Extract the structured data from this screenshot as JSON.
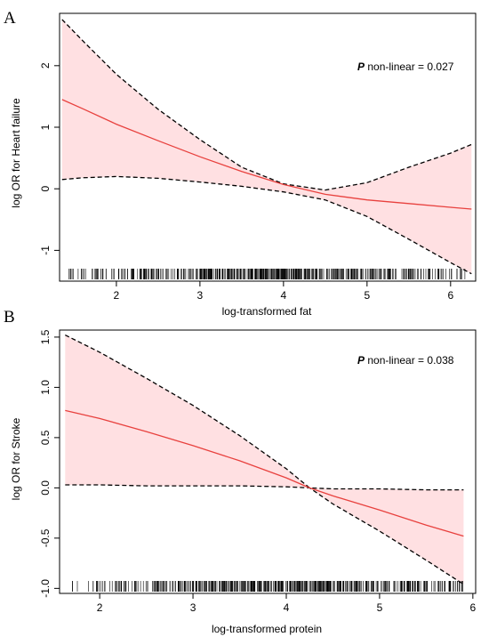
{
  "colors": {
    "ci_fill": "#ffe0e2",
    "fit_line": "#e8413e",
    "ci_line": "#000000",
    "rug": "#000000"
  },
  "chart_data": [
    {
      "type": "line",
      "panel_label": "A",
      "xlabel": "log-transformed fat",
      "ylabel": "log OR for Heart failure",
      "annotation": {
        "p": "P",
        "text": " non-linear = 0.027"
      },
      "xlim": [
        1.32,
        6.3
      ],
      "ylim": [
        -1.5,
        2.85
      ],
      "xticks": [
        2,
        3,
        4,
        5,
        6
      ],
      "yticks": [
        -1,
        0,
        1,
        2
      ],
      "x": [
        1.35,
        1.6,
        2.0,
        2.5,
        3.0,
        3.5,
        4.0,
        4.5,
        5.0,
        5.5,
        6.0,
        6.25
      ],
      "estimate": [
        1.45,
        1.3,
        1.05,
        0.78,
        0.52,
        0.28,
        0.07,
        -0.09,
        -0.18,
        -0.24,
        -0.3,
        -0.33
      ],
      "upper": [
        2.75,
        2.4,
        1.86,
        1.29,
        0.8,
        0.35,
        0.08,
        -0.02,
        0.1,
        0.35,
        0.58,
        0.72
      ],
      "lower": [
        0.15,
        0.18,
        0.2,
        0.17,
        0.11,
        0.04,
        -0.05,
        -0.18,
        -0.45,
        -0.82,
        -1.2,
        -1.38
      ],
      "rug_range": [
        1.4,
        6.2
      ]
    },
    {
      "type": "line",
      "panel_label": "B",
      "xlabel": "log-transformed protein",
      "ylabel": "log OR for Stroke",
      "annotation": {
        "p": "P",
        "text": " non-linear = 0.038"
      },
      "xlim": [
        1.57,
        6.03
      ],
      "ylim": [
        -1.05,
        1.57
      ],
      "xticks": [
        2,
        3,
        4,
        5,
        6
      ],
      "yticks": [
        -1.0,
        -0.5,
        0.0,
        0.5,
        1.0,
        1.5
      ],
      "yticklabels": [
        "-1.0",
        "-0.5",
        "0.0",
        "0.5",
        "1.0",
        "1.5"
      ],
      "x": [
        1.63,
        2.0,
        2.5,
        3.0,
        3.5,
        4.0,
        4.25,
        4.5,
        5.0,
        5.5,
        5.9
      ],
      "estimate": [
        0.77,
        0.69,
        0.56,
        0.42,
        0.27,
        0.1,
        0.0,
        -0.08,
        -0.22,
        -0.37,
        -0.48
      ],
      "upper": [
        1.52,
        1.35,
        1.09,
        0.82,
        0.52,
        0.19,
        0.0,
        -0.01,
        -0.01,
        -0.02,
        -0.02
      ],
      "lower": [
        0.03,
        0.03,
        0.02,
        0.02,
        0.02,
        0.01,
        0.0,
        -0.16,
        -0.43,
        -0.72,
        -0.96
      ],
      "rug_range": [
        1.65,
        5.9
      ]
    }
  ]
}
